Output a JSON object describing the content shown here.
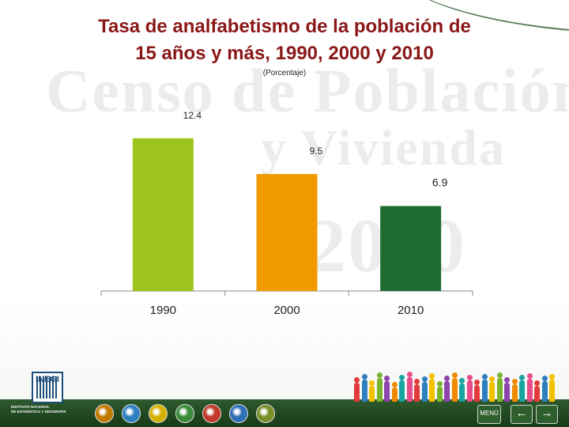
{
  "slide": {
    "title_line1": "Tasa de analfabetismo de la población de",
    "title_line2": "15 años y más, 1990, 2000 y 2010",
    "subtitle": "(Porcentaje)",
    "watermark_line1": "Censo de Población",
    "watermark_line2": "y Vivienda",
    "watermark_line3": "2010"
  },
  "chart_data": {
    "type": "bar",
    "categories": [
      "1990",
      "2000",
      "2010"
    ],
    "values": [
      12.4,
      9.5,
      6.9
    ],
    "data_labels": [
      "12.4",
      "9.5",
      "6.9"
    ],
    "colors": [
      "#9dc41c",
      "#f09a00",
      "#1f6b2f"
    ],
    "title": "",
    "xlabel": "",
    "ylabel": "",
    "ylim": [
      0,
      14
    ],
    "grid": false,
    "legend": "none"
  },
  "footer": {
    "logo_text": "INEGI",
    "institute_line1": "INSTITUTO NACIONAL",
    "institute_line2": "DE ESTADÍSTICA Y GEOGRAFÍA",
    "menu_label": "MENÚ",
    "prev_icon": "left-arrow-icon",
    "next_icon": "right-arrow-icon",
    "nav_icon_colors": [
      "#c07a00",
      "#2e7fc0",
      "#d4b000",
      "#3c8a3c",
      "#c0392b",
      "#2f6fb5",
      "#7a8f2a"
    ],
    "people_colors": [
      "#e33b3b",
      "#2e7fc0",
      "#f2c200",
      "#7bb32e",
      "#8e44ad",
      "#f08a00",
      "#1aa3a3",
      "#e84d8a"
    ]
  }
}
